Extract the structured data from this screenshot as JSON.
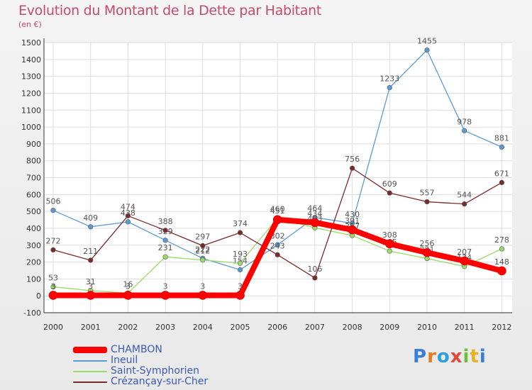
{
  "header": {
    "title": "Evolution du Montant de la Dette par Habitant",
    "subtitle": "(en €)"
  },
  "logo": {
    "text": "Proxiti"
  },
  "chart_data": {
    "type": "line",
    "x": [
      "2000",
      "2001",
      "2002",
      "2003",
      "2004",
      "2005",
      "2006",
      "2007",
      "2008",
      "2009",
      "2010",
      "2011",
      "2012"
    ],
    "ylim": [
      -100,
      1500
    ],
    "yticks": [
      -100,
      0,
      100,
      200,
      300,
      400,
      500,
      600,
      700,
      800,
      900,
      1000,
      1100,
      1200,
      1300,
      1400,
      1500
    ],
    "grid": true,
    "legend_position": "bottom-left",
    "series": [
      {
        "name": "CHAMBON",
        "color": "#ff0000",
        "values": [
          3,
          3,
          3,
          3,
          3,
          3,
          451,
          434,
          391,
          308,
          256,
          207,
          148
        ]
      },
      {
        "name": "Ineuil",
        "color": "#5b9bd5",
        "values": [
          506,
          409,
          438,
          329,
          222,
          154,
          302,
          464,
          430,
          1233,
          1455,
          978,
          881
        ]
      },
      {
        "name": "Saint-Symphorien",
        "color": "#99dd66",
        "values": [
          53,
          31,
          16,
          231,
          212,
          193,
          460,
          403,
          357,
          265,
          221,
          174,
          278
        ]
      },
      {
        "name": "Crézançay-sur-Cher",
        "color": "#7a2a2a",
        "values": [
          272,
          211,
          474,
          388,
          297,
          374,
          243,
          106,
          756,
          609,
          557,
          544,
          671
        ]
      }
    ]
  }
}
